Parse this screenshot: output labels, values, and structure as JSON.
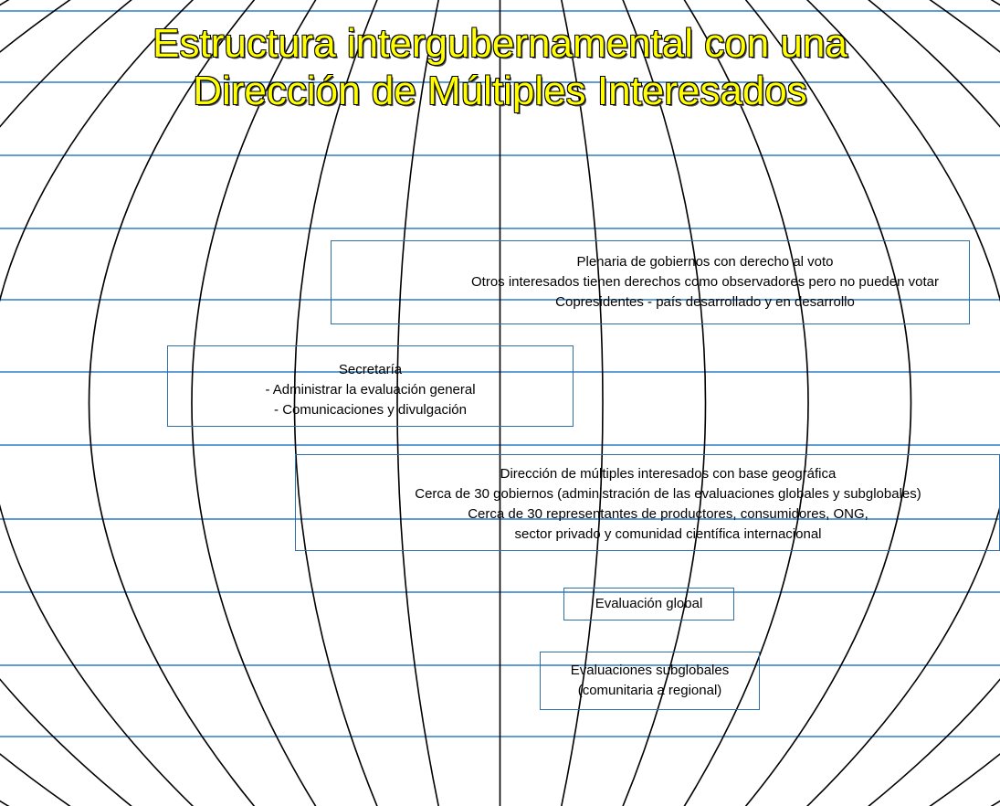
{
  "title": {
    "line1": "Estructura intergubernamental con una",
    "line2": "Dirección de Múltiples Interesados"
  },
  "boxes": {
    "plenary": {
      "l1": "Plenaria de gobiernos con derecho al voto",
      "l2": "Otros interesados tienen derechos como observadores pero no pueden votar",
      "l3": "Copresidentes - país desarrollado y en desarrollo"
    },
    "secretariat": {
      "l1": "Secretaría",
      "l2": "- Administrar la evaluación general",
      "l3": "- Comunicaciones y divulgación"
    },
    "board": {
      "l1": "Dirección de múltiples interesados con base geográfica",
      "l2": "Cerca de 30 gobiernos (administración de las evaluaciones globales y subglobales)",
      "l3": "Cerca de 30 representantes de productores, consumidores, ONG,",
      "l4": "sector privado y comunidad científica internacional"
    },
    "global": {
      "l1": "Evaluación global"
    },
    "subglobal": {
      "l1": "Evaluaciones subglobales",
      "l2": "(comunitaria a regional)"
    }
  },
  "colors": {
    "title_fill": "#ffff00",
    "grid_lines": "#2f7fc8",
    "box_border": "#2f6fa8",
    "meridians": "#000000"
  }
}
